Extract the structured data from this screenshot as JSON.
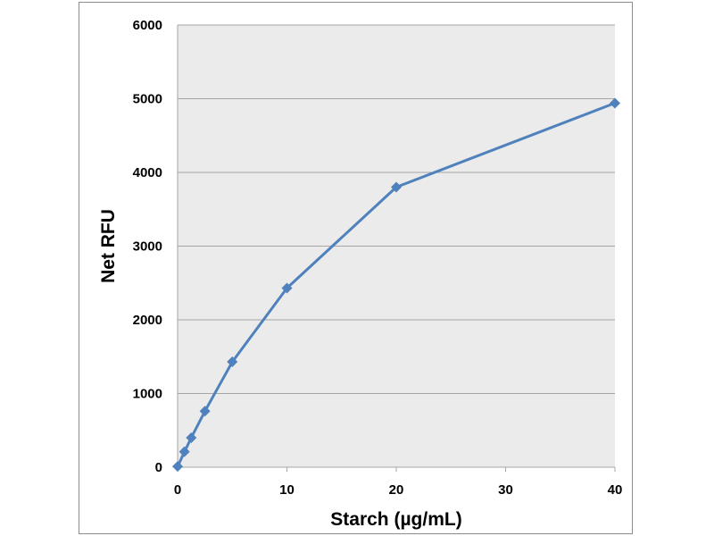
{
  "chart_data": {
    "type": "line",
    "title": "",
    "xlabel": "Starch (µg/mL)",
    "ylabel": "Net RFU",
    "xlim": [
      0,
      40
    ],
    "ylim": [
      0,
      6000
    ],
    "x_ticks": [
      "0",
      "10",
      "20",
      "30",
      "40"
    ],
    "y_ticks": [
      "0",
      "1000",
      "2000",
      "3000",
      "4000",
      "5000",
      "6000"
    ],
    "grid": "horizontal",
    "legend": "none",
    "series": [
      {
        "color": "#4f81bd",
        "marker": "diamond",
        "x": [
          0,
          0.625,
          1.25,
          2.5,
          5,
          10,
          20,
          40
        ],
        "y": [
          10,
          210,
          400,
          760,
          1430,
          2430,
          3800,
          4940
        ]
      }
    ]
  },
  "colors": {
    "plot_background": "#ebebeb",
    "gridline": "#a6a6a6",
    "frame": "#8c8c8c",
    "series": "#4f81bd"
  }
}
